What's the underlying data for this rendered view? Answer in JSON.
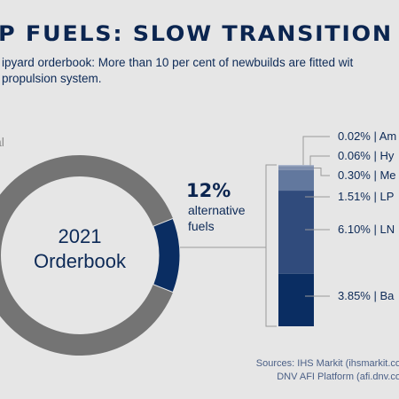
{
  "header": {
    "title": "P FUELS: SLOW TRANSITION",
    "subtitle_line1": "ipyard orderbook: More than 10 per cent of newbuilds are fitted wit",
    "subtitle_line2": "propulsion system."
  },
  "chart_data": {
    "type": "pie",
    "donut": {
      "center_line1": "2021",
      "center_line2": "Orderbook",
      "slices": [
        {
          "label": "al",
          "value": 88
        },
        {
          "label": "alternative fuels",
          "value": 12
        }
      ],
      "callout_value": "12%",
      "callout_line1": "alternative",
      "callout_line2": "fuels"
    },
    "breakdown": {
      "type": "stacked-bar",
      "segments": [
        {
          "label": "0.02% | Am",
          "value": 0.02
        },
        {
          "label": "0.06% | Hy",
          "value": 0.06
        },
        {
          "label": "0.30% | Me",
          "value": 0.3
        },
        {
          "label": "1.51% | LP",
          "value": 1.51
        },
        {
          "label": "6.10% | LN",
          "value": 6.1
        },
        {
          "label": "3.85% | Ba",
          "value": 3.85
        }
      ]
    }
  },
  "colors": {
    "conventional": "#747474",
    "alternative": "#0a2d62",
    "segments": [
      "#a9b5cc",
      "#a9b5cc",
      "#7f8fae",
      "#62789e",
      "#304b7c",
      "#0a2d62"
    ],
    "connector": "#9a9a9a"
  },
  "sources": {
    "line1": "Sources: IHS Markit (ihsmarkit.co",
    "line2": "DNV AFI Platform (afi.dnv.co"
  }
}
